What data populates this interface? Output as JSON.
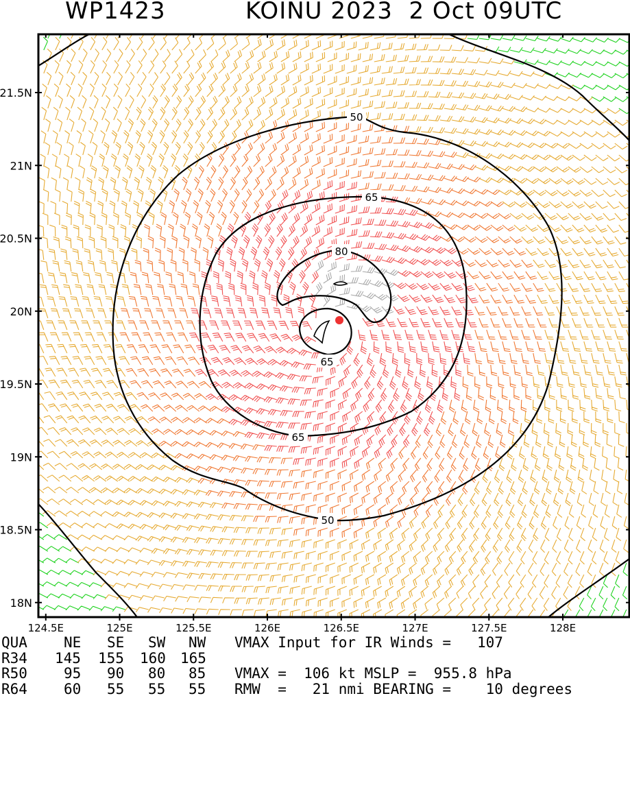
{
  "header": {
    "storm_id": "WP1423",
    "storm_title": "KOINU 2023  2 Oct 09UTC"
  },
  "map": {
    "lon_range": [
      124.45,
      128.45
    ],
    "lat_range": [
      17.9,
      21.9
    ],
    "lat_ticks": [
      {
        "value": 21.5,
        "label": "21.5N"
      },
      {
        "value": 21,
        "label": "21N"
      },
      {
        "value": 20.5,
        "label": "20.5N"
      },
      {
        "value": 20,
        "label": "20N"
      },
      {
        "value": 19.5,
        "label": "19.5N"
      },
      {
        "value": 19,
        "label": "19N"
      },
      {
        "value": 18.5,
        "label": "18.5N"
      },
      {
        "value": 18,
        "label": "18N"
      }
    ],
    "lon_ticks": [
      {
        "value": 124.5,
        "label": "124.5E"
      },
      {
        "value": 125,
        "label": "125E"
      },
      {
        "value": 125.5,
        "label": "125.5E"
      },
      {
        "value": 126,
        "label": "126E"
      },
      {
        "value": 126.5,
        "label": "126.5E"
      },
      {
        "value": 127,
        "label": "127E"
      },
      {
        "value": 127.5,
        "label": "127.5E"
      },
      {
        "value": 128,
        "label": "128E"
      }
    ],
    "center": {
      "lon": 126.45,
      "lat": 19.9
    },
    "contour_labels": {
      "c50_top": "50",
      "c50_bottom": "50",
      "c65_top": "65",
      "c65_bottom": "65",
      "c80_top": "80",
      "c65_eye": "65"
    },
    "colors": {
      "gale": "#1ed21e",
      "r34": "#e6aa32",
      "r50": "#f07832",
      "r64": "#f05050",
      "core": "#a8a8a8",
      "center_dot": "#ee3333",
      "contour": "#000000"
    }
  },
  "stats": {
    "header": {
      "quad": "QUA",
      "ne": "NE",
      "se": "SE",
      "sw": "SW",
      "nw": "NW",
      "text": "VMAX Input for IR Winds =   107"
    },
    "rows": [
      {
        "label": "R34",
        "ne": "145",
        "se": "155",
        "sw": "160",
        "nw": "165",
        "text": ""
      },
      {
        "label": "R50",
        "ne": "95",
        "se": "90",
        "sw": "80",
        "nw": "85",
        "text": "VMAX =  106 kt MSLP =  955.8 hPa"
      },
      {
        "label": "R64",
        "ne": "60",
        "se": "55",
        "sw": "55",
        "nw": "55",
        "text": "RMW  =   21 nmi BEARING =    10 degrees"
      }
    ]
  }
}
